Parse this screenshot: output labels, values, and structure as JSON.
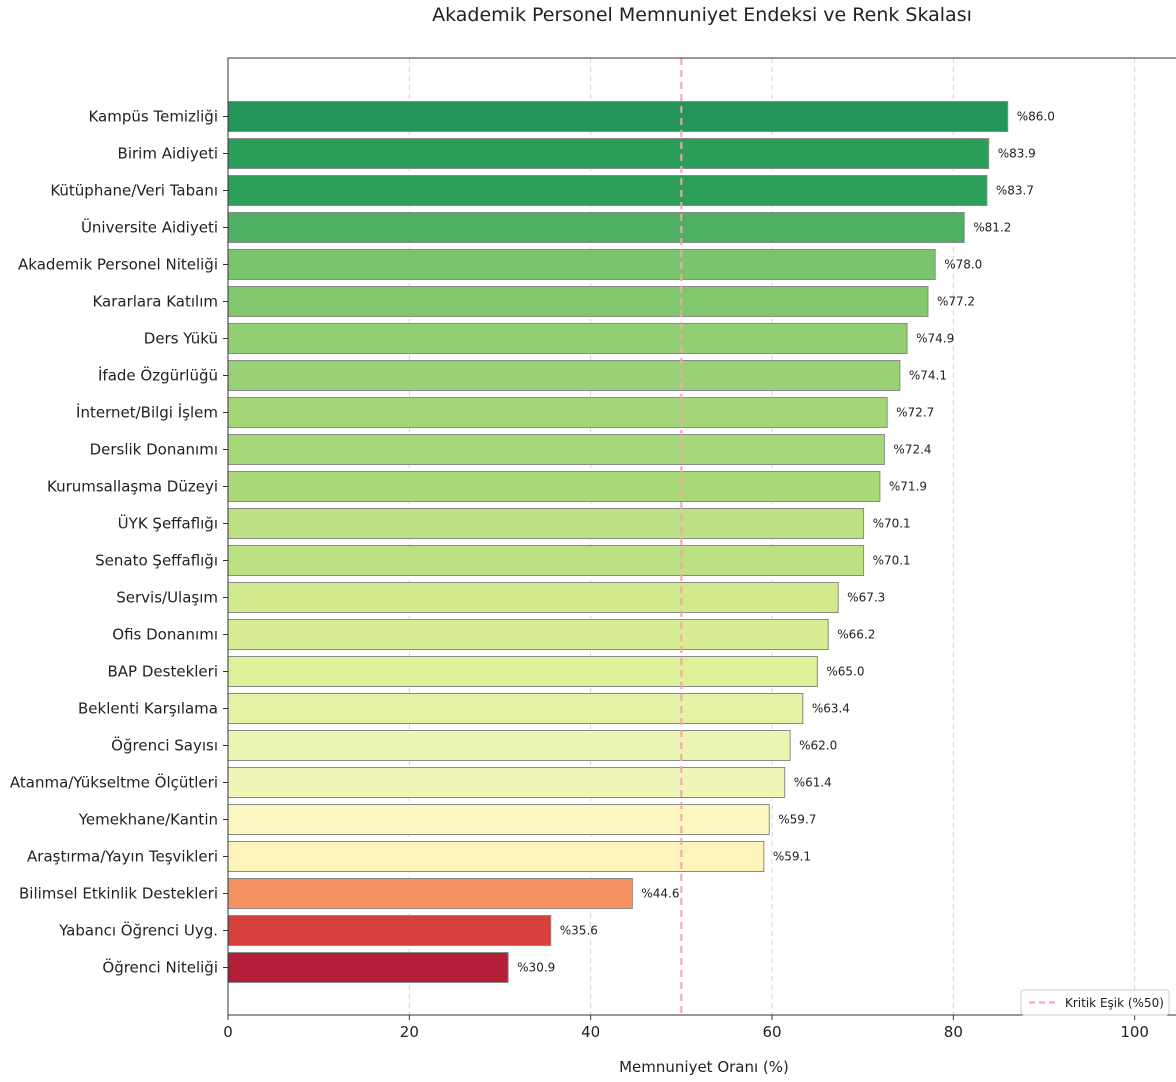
{
  "chart_data": {
    "type": "bar",
    "orientation": "horizontal",
    "title": "Akademik Personel Memnuniyet Endeksi ve Renk Skalası",
    "xlabel": "Memnuniyet Oranı (%)",
    "ylabel": "",
    "xlim": [
      0,
      105
    ],
    "xticks": [
      0,
      20,
      40,
      60,
      80,
      100
    ],
    "grid": "x-dashed",
    "value_label_prefix": "%",
    "categories": [
      "Kampüs Temizliği",
      "Birim Aidiyeti",
      "Kütüphane/Veri Tabanı",
      "Üniversite Aidiyeti",
      "Akademik Personel Niteliği",
      "Kararlara Katılım",
      "Ders Yükü",
      "İfade Özgürlüğü",
      "İnternet/Bilgi İşlem",
      "Derslik Donanımı",
      "Kurumsallaşma Düzeyi",
      "ÜYK Şeffaflığı",
      "Senato Şeffaflığı",
      "Servis/Ulaşım",
      "Ofis Donanımı",
      "BAP Destekleri",
      "Beklenti Karşılama",
      "Öğrenci Sayısı",
      "Atanma/Yükseltme Ölçütleri",
      "Yemekhane/Kantin",
      "Araştırma/Yayın Teşvikleri",
      "Bilimsel Etkinlik Destekleri",
      "Yabancı Öğrenci Uyg.",
      "Öğrenci Niteliği"
    ],
    "values": [
      86.0,
      83.9,
      83.7,
      81.2,
      78.0,
      77.2,
      74.9,
      74.1,
      72.7,
      72.4,
      71.9,
      70.1,
      70.1,
      67.3,
      66.2,
      65.0,
      63.4,
      62.0,
      61.4,
      59.7,
      59.1,
      44.6,
      35.6,
      30.9
    ],
    "value_labels": [
      "%86.0",
      "%83.9",
      "%83.7",
      "%81.2",
      "%78.0",
      "%77.2",
      "%74.9",
      "%74.1",
      "%72.7",
      "%72.4",
      "%71.9",
      "%70.1",
      "%70.1",
      "%67.3",
      "%66.2",
      "%65.0",
      "%63.4",
      "%62.0",
      "%61.4",
      "%59.7",
      "%59.1",
      "%44.6",
      "%35.6",
      "%30.9"
    ],
    "colors": [
      "#249558",
      "#2b9f5a",
      "#2c9f5a",
      "#4fb064",
      "#79c46d",
      "#80c76e",
      "#92cf74",
      "#98d177",
      "#a4d678",
      "#a6d779",
      "#aad97a",
      "#bce182",
      "#bce182",
      "#d1ea8e",
      "#d8ed93",
      "#dff09a",
      "#e5f2a6",
      "#ecf5b2",
      "#eff6b7",
      "#fcf7c0",
      "#fdf4bc",
      "#f59261",
      "#d63f3b",
      "#b41e38"
    ],
    "reference_line": {
      "value": 50,
      "label": "Kritik Eşik (%50)",
      "color": "#f2a6ad",
      "style": "dashed"
    },
    "legend": {
      "position": "bottom-right",
      "entries": [
        "Kritik Eşik (%50)"
      ]
    }
  }
}
